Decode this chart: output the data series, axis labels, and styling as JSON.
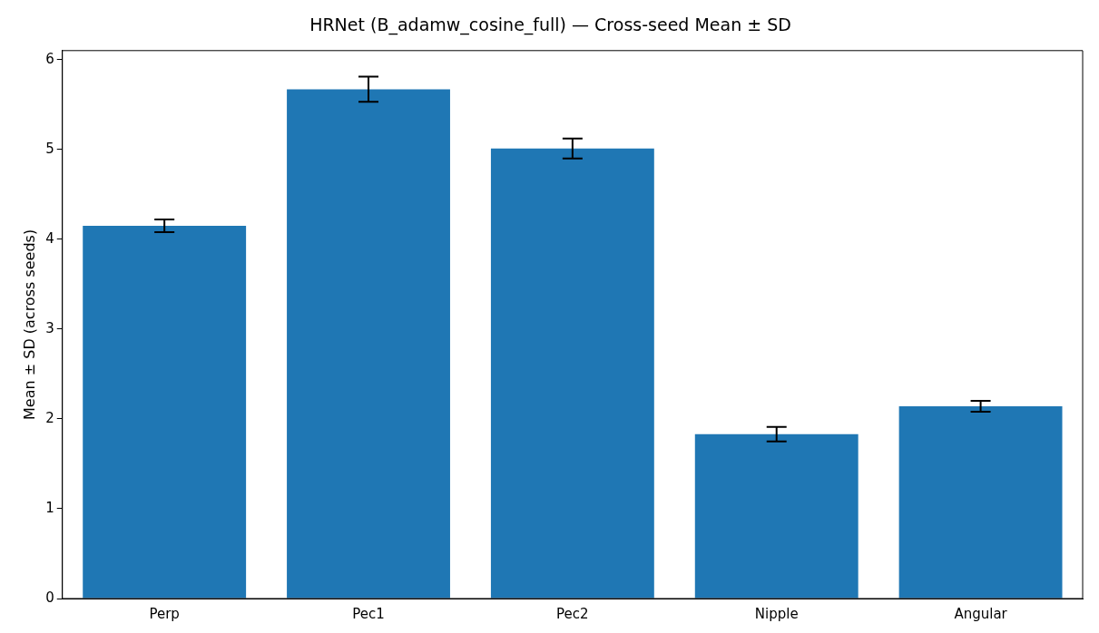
{
  "chart_data": {
    "type": "bar",
    "title": "HRNet (B_adamw_cosine_full) — Cross-seed Mean ± SD",
    "ylabel": "Mean ± SD (across seeds)",
    "categories": [
      "Perp",
      "Pec1",
      "Pec2",
      "Nipple",
      "Angular"
    ],
    "values": [
      4.15,
      5.67,
      5.01,
      1.83,
      2.14
    ],
    "errors": [
      0.07,
      0.14,
      0.11,
      0.08,
      0.06
    ],
    "color": "#1f77b4",
    "ylim": [
      0,
      6.1
    ],
    "yticks": [
      0,
      1,
      2,
      3,
      4,
      5,
      6
    ],
    "grid": false,
    "legend": false
  }
}
